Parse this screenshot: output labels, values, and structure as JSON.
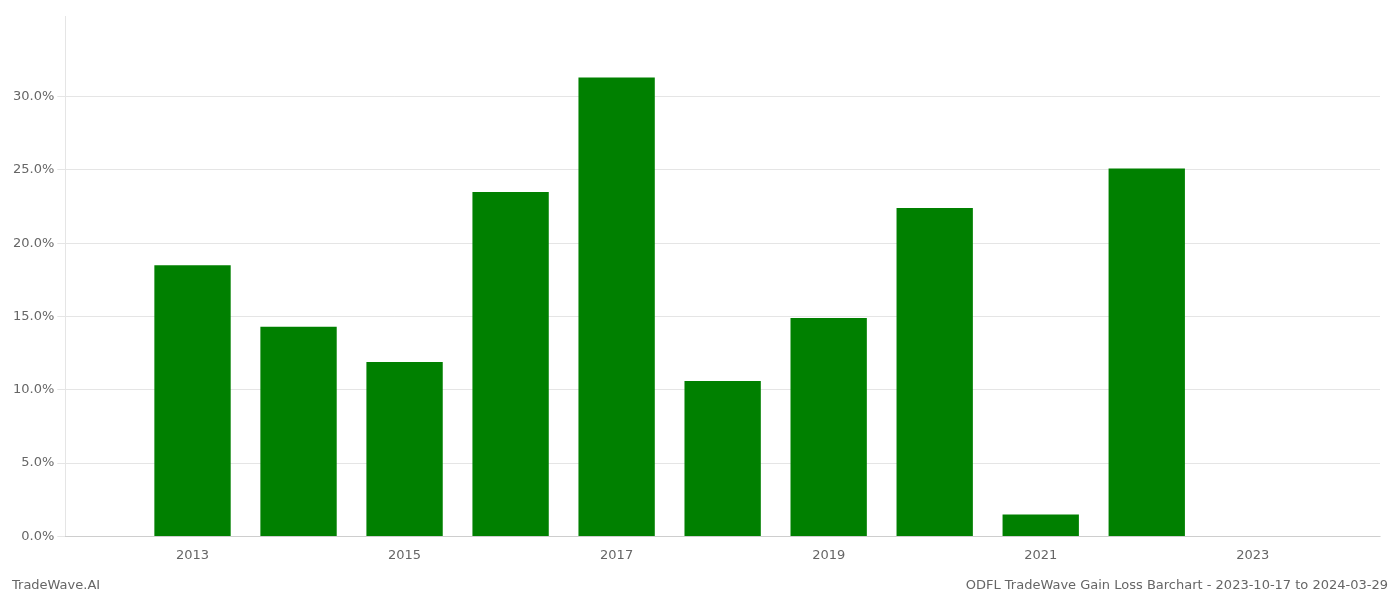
{
  "chart_data": {
    "type": "bar",
    "title": "ODFL TradeWave Gain Loss Barchart - 2023-10-17 to 2024-03-29",
    "annotations": [
      "TradeWave.AI"
    ],
    "x": [
      2013,
      2014,
      2015,
      2016,
      2017,
      2018,
      2019,
      2020,
      2021,
      2022,
      2023
    ],
    "values": [
      0.185,
      0.143,
      0.119,
      0.235,
      0.313,
      0.106,
      0.149,
      0.224,
      0.015,
      0.251,
      0.0
    ],
    "color": "#008000",
    "xlim": [
      2011.8,
      2024.2
    ],
    "xticks": [
      2013,
      2015,
      2017,
      2019,
      2021,
      2023
    ],
    "ylim": [
      0,
      0.355
    ],
    "yticks": [
      {
        "value": 0.0,
        "label": "0.0%"
      },
      {
        "value": 0.05,
        "label": "5.0%"
      },
      {
        "value": 0.1,
        "label": "10.0%"
      },
      {
        "value": 0.15,
        "label": "15.0%"
      },
      {
        "value": 0.2,
        "label": "20.0%"
      },
      {
        "value": 0.25,
        "label": "25.0%"
      },
      {
        "value": 0.3,
        "label": "30.0%"
      }
    ],
    "grid": true
  }
}
